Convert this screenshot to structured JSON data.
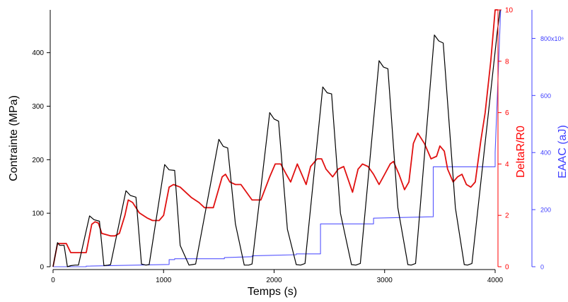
{
  "chart_data": {
    "type": "line",
    "xlabel": "Temps (s)",
    "xlim": [
      0,
      4000
    ],
    "x_ticks": [
      "0",
      "1000",
      "2000",
      "3000",
      "4000"
    ],
    "axes": {
      "left": {
        "label": "Contrainte (MPa)",
        "range": [
          0,
          480
        ],
        "ticks": [
          "0",
          "100",
          "200",
          "300",
          "400"
        ],
        "color": "#000000"
      },
      "right1": {
        "label": "DeltaR/R0",
        "range": [
          0,
          10
        ],
        "ticks": [
          "0",
          "2",
          "4",
          "6",
          "8",
          "10"
        ],
        "color": "#ff0000"
      },
      "right2": {
        "label": "EAAC (aJ)",
        "range": [
          0,
          900
        ],
        "ticks": [
          "0",
          "200",
          "400",
          "600",
          "800x10⁶"
        ],
        "color": "#4040ff"
      }
    },
    "series": [
      {
        "axis": "left",
        "color": "#000000",
        "x": [
          0,
          40,
          60,
          100,
          130,
          160,
          200,
          230,
          330,
          370,
          420,
          460,
          500,
          520,
          660,
          700,
          750,
          800,
          840,
          870,
          1010,
          1050,
          1100,
          1150,
          1230,
          1260,
          1290,
          1500,
          1540,
          1580,
          1650,
          1730,
          1770,
          1800,
          1960,
          2000,
          2040,
          2120,
          2200,
          2240,
          2280,
          2440,
          2480,
          2520,
          2600,
          2700,
          2740,
          2780,
          2950,
          2990,
          3030,
          3120,
          3210,
          3240,
          3280,
          3450,
          3490,
          3530,
          3640,
          3720,
          3750,
          3790,
          4020,
          4045
        ],
        "values": [
          0,
          45,
          40,
          40,
          0,
          2,
          3,
          3,
          95,
          88,
          85,
          2,
          3,
          4,
          142,
          133,
          130,
          5,
          3,
          4,
          191,
          181,
          180,
          40,
          3,
          4,
          5,
          238,
          225,
          222,
          80,
          3,
          3,
          5,
          288,
          276,
          272,
          70,
          4,
          3,
          6,
          336,
          325,
          323,
          100,
          4,
          3,
          6,
          385,
          373,
          370,
          110,
          4,
          3,
          6,
          433,
          422,
          418,
          110,
          4,
          3,
          6,
          440,
          480
        ]
      },
      {
        "axis": "right1",
        "color": "#e01010",
        "x": [
          0,
          40,
          80,
          120,
          160,
          220,
          300,
          350,
          380,
          410,
          440,
          520,
          560,
          600,
          650,
          680,
          720,
          780,
          850,
          900,
          960,
          1000,
          1050,
          1090,
          1150,
          1250,
          1320,
          1370,
          1450,
          1530,
          1560,
          1600,
          1650,
          1700,
          1800,
          1880,
          1960,
          2010,
          2060,
          2110,
          2150,
          2210,
          2290,
          2330,
          2390,
          2430,
          2470,
          2530,
          2580,
          2630,
          2710,
          2760,
          2800,
          2850,
          2900,
          2950,
          3000,
          3050,
          3080,
          3130,
          3180,
          3220,
          3260,
          3300,
          3360,
          3420,
          3470,
          3500,
          3540,
          3570,
          3620,
          3660,
          3700,
          3740,
          3780,
          3820,
          3870,
          3910,
          3960,
          4000,
          4025
        ],
        "values": [
          0,
          0.9,
          0.9,
          0.9,
          0.55,
          0.55,
          0.55,
          1.65,
          1.75,
          1.7,
          1.3,
          1.2,
          1.2,
          1.3,
          2.0,
          2.6,
          2.5,
          2.1,
          1.9,
          1.8,
          1.8,
          2.0,
          3.1,
          3.2,
          3.1,
          2.7,
          2.5,
          2.3,
          2.3,
          3.5,
          3.6,
          3.3,
          3.2,
          3.2,
          2.6,
          2.6,
          3.5,
          4.0,
          4.0,
          3.6,
          3.3,
          4.0,
          3.2,
          3.9,
          4.2,
          4.2,
          3.8,
          3.5,
          3.8,
          3.9,
          2.9,
          3.8,
          4.0,
          3.9,
          3.6,
          3.2,
          3.6,
          4.0,
          4.1,
          3.6,
          3.0,
          3.3,
          4.8,
          5.2,
          4.8,
          4.2,
          4.3,
          4.7,
          4.5,
          3.8,
          3.3,
          3.5,
          3.6,
          3.2,
          3.1,
          3.3,
          4.9,
          6.0,
          8.0,
          10.0,
          10.0
        ]
      },
      {
        "axis": "right2",
        "color": "#5555ff",
        "x": [
          0,
          300,
          300,
          1050,
          1050,
          1100,
          1100,
          1550,
          1550,
          1800,
          1800,
          2200,
          2200,
          2420,
          2420,
          2900,
          2900,
          3440,
          3440,
          4000,
          4000,
          4050
        ],
        "values": [
          0,
          0,
          2,
          8,
          25,
          25,
          28,
          28,
          32,
          35,
          38,
          42,
          45,
          45,
          150,
          150,
          170,
          175,
          350,
          350,
          400,
          900
        ]
      }
    ]
  }
}
